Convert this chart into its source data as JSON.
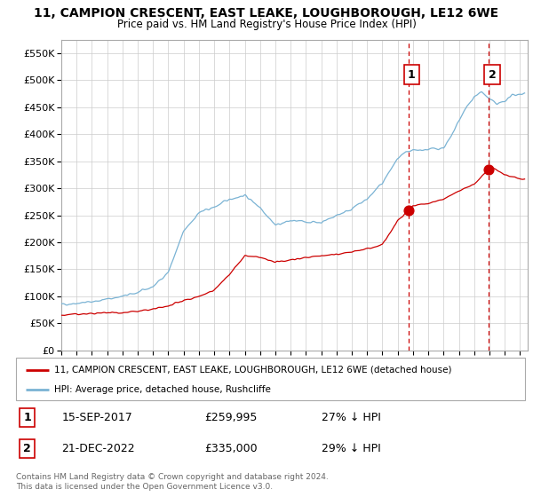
{
  "title": "11, CAMPION CRESCENT, EAST LEAKE, LOUGHBOROUGH, LE12 6WE",
  "subtitle": "Price paid vs. HM Land Registry's House Price Index (HPI)",
  "ylim": [
    0,
    575000
  ],
  "yticks": [
    0,
    50000,
    100000,
    150000,
    200000,
    250000,
    300000,
    350000,
    400000,
    450000,
    500000,
    550000
  ],
  "ytick_labels": [
    "£0",
    "£50K",
    "£100K",
    "£150K",
    "£200K",
    "£250K",
    "£300K",
    "£350K",
    "£400K",
    "£450K",
    "£500K",
    "£550K"
  ],
  "purchase1_date": 2017.71,
  "purchase1_price": 259995,
  "purchase1_label": "1",
  "purchase1_text": "15-SEP-2017",
  "purchase1_hpi": "27% ↓ HPI",
  "purchase2_date": 2022.97,
  "purchase2_price": 335000,
  "purchase2_label": "2",
  "purchase2_text": "21-DEC-2022",
  "purchase2_hpi": "29% ↓ HPI",
  "hpi_color": "#7ab3d4",
  "property_color": "#cc0000",
  "dashed_color": "#cc0000",
  "background_color": "#ffffff",
  "grid_color": "#cccccc",
  "legend_property": "11, CAMPION CRESCENT, EAST LEAKE, LOUGHBOROUGH, LE12 6WE (detached house)",
  "legend_hpi": "HPI: Average price, detached house, Rushcliffe",
  "footer": "Contains HM Land Registry data © Crown copyright and database right 2024.\nThis data is licensed under the Open Government Licence v3.0.",
  "xlim_start": 1995.0,
  "xlim_end": 2025.5,
  "marker_dot_size": 60
}
